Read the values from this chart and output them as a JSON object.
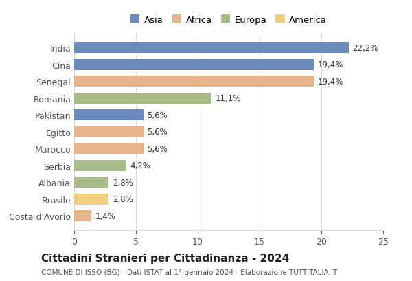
{
  "countries": [
    "India",
    "Cina",
    "Senegal",
    "Romania",
    "Pakistan",
    "Egitto",
    "Marocco",
    "Serbia",
    "Albania",
    "Brasile",
    "Costa d'Avorio"
  ],
  "values": [
    22.2,
    19.4,
    19.4,
    11.1,
    5.6,
    5.6,
    5.6,
    4.2,
    2.8,
    2.8,
    1.4
  ],
  "labels": [
    "22,2%",
    "19,4%",
    "19,4%",
    "11,1%",
    "5,6%",
    "5,6%",
    "5,6%",
    "4,2%",
    "2,8%",
    "2,8%",
    "1,4%"
  ],
  "colors": [
    "#6b8cba",
    "#6b8cba",
    "#e8b48a",
    "#a8bc8a",
    "#6b8cba",
    "#e8b48a",
    "#e8b48a",
    "#a8bc8a",
    "#a8bc8a",
    "#f0d080",
    "#e8b48a"
  ],
  "legend_labels": [
    "Asia",
    "Africa",
    "Europa",
    "America"
  ],
  "legend_colors": [
    "#6b8cba",
    "#e8b48a",
    "#a8bc8a",
    "#f0d080"
  ],
  "title": "Cittadini Stranieri per Cittadinanza - 2024",
  "subtitle": "COMUNE DI ISSO (BG) - Dati ISTAT al 1° gennaio 2024 - Elaborazione TUTTITALIA.IT",
  "xlim": [
    0,
    25
  ],
  "xticks": [
    0,
    5,
    10,
    15,
    20,
    25
  ],
  "bar_height": 0.65,
  "background_color": "#ffffff",
  "grid_color": "#dddddd"
}
